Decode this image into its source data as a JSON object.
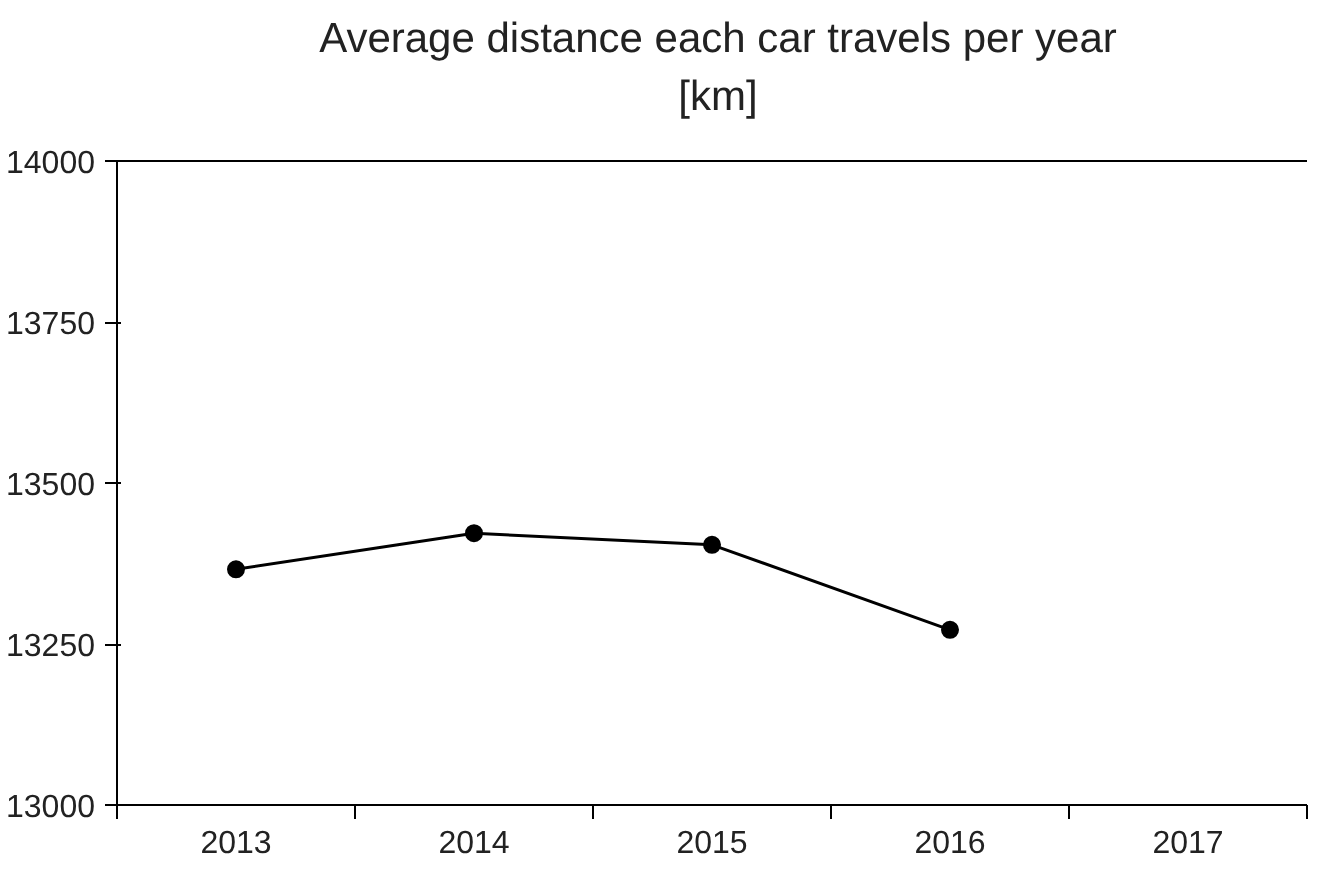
{
  "chart_data": {
    "type": "line",
    "title": "Average distance each car travels per year\n[km]",
    "categories": [
      "2013",
      "2014",
      "2015",
      "2016",
      "2017"
    ],
    "series": [
      {
        "color": "#000000",
        "values": [
          13366,
          13422,
          13404,
          13272,
          null
        ]
      }
    ],
    "ylim": [
      13000,
      14000
    ],
    "yticks": [
      13000,
      13250,
      13500,
      13750,
      14000
    ],
    "grid": false,
    "marker": "circle",
    "line_style": "solid"
  }
}
